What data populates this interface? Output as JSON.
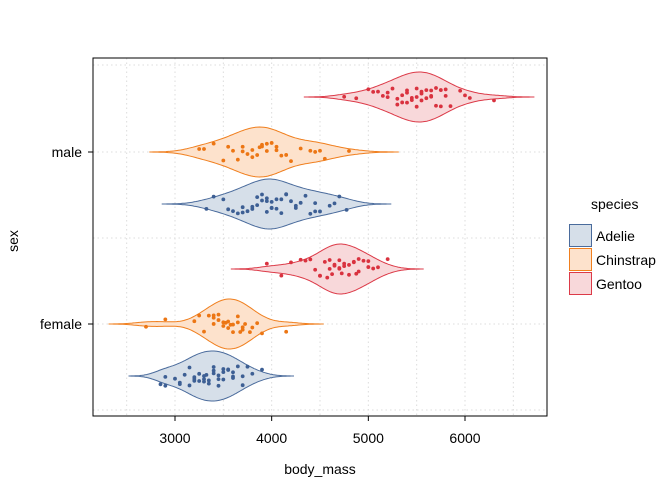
{
  "chart_data": {
    "type": "violin",
    "title": "",
    "xlabel": "body_mass",
    "ylabel": "sex",
    "xlim": [
      2200,
      6850
    ],
    "xticks": [
      3000,
      4000,
      5000,
      6000
    ],
    "xtick_labels": [
      "3000",
      "4000",
      "5000",
      "6000"
    ],
    "categories": [
      "male",
      "female"
    ],
    "grid": true,
    "legend": {
      "title": "species",
      "position": "right",
      "entries": [
        "Adelie",
        "Chinstrap",
        "Gentoo"
      ]
    },
    "colors": {
      "Adelie": {
        "line": "#4a6b9c",
        "fill": "#d6dfe9",
        "point": "#3d5f94"
      },
      "Chinstrap": {
        "line": "#f07f1e",
        "fill": "#fde2cc",
        "point": "#ec7614"
      },
      "Gentoo": {
        "line": "#dc3a48",
        "fill": "#f8d8da",
        "point": "#d9323f"
      }
    },
    "series": [
      {
        "sex": "male",
        "species": "Gentoo",
        "values": [
          4750,
          4875,
          5000,
          5050,
          5150,
          5200,
          5250,
          5300,
          5300,
          5350,
          5400,
          5400,
          5450,
          5500,
          5500,
          5550,
          5550,
          5600,
          5600,
          5650,
          5650,
          5700,
          5700,
          5750,
          5800,
          5800,
          5850,
          5950,
          6000,
          6050,
          6300,
          5200,
          5400,
          5500,
          5650,
          5100,
          5450,
          5550,
          5750,
          5350
        ]
      },
      {
        "sex": "male",
        "species": "Chinstrap",
        "values": [
          3250,
          3300,
          3400,
          3500,
          3550,
          3650,
          3700,
          3700,
          3750,
          3800,
          3800,
          3850,
          3900,
          3900,
          3950,
          3950,
          4000,
          4050,
          4100,
          4150,
          4200,
          4300,
          4400,
          4450,
          4500,
          4550,
          4800,
          3600,
          3875,
          4050
        ]
      },
      {
        "sex": "male",
        "species": "Adelie",
        "values": [
          3325,
          3400,
          3500,
          3550,
          3600,
          3650,
          3700,
          3750,
          3800,
          3800,
          3850,
          3900,
          3900,
          3950,
          3950,
          4000,
          4000,
          4050,
          4100,
          4100,
          4150,
          4200,
          4250,
          4300,
          4350,
          4400,
          4450,
          4500,
          4600,
          4650,
          4700,
          4775,
          3950,
          4050,
          4150,
          3850,
          4000,
          4250,
          3700,
          4450
        ]
      },
      {
        "sex": "female",
        "species": "Gentoo",
        "values": [
          3950,
          4100,
          4200,
          4300,
          4350,
          4400,
          4450,
          4500,
          4500,
          4550,
          4600,
          4600,
          4650,
          4700,
          4700,
          4750,
          4750,
          4800,
          4800,
          4850,
          4850,
          4900,
          4900,
          4950,
          5000,
          5000,
          5050,
          5100,
          5200,
          4625,
          4700,
          4875,
          4650,
          4575,
          4725
        ]
      },
      {
        "sex": "female",
        "species": "Chinstrap",
        "values": [
          2700,
          2900,
          3200,
          3250,
          3300,
          3350,
          3400,
          3400,
          3450,
          3450,
          3500,
          3525,
          3550,
          3575,
          3600,
          3600,
          3650,
          3650,
          3675,
          3700,
          3725,
          3775,
          3800,
          3850,
          3900,
          4150,
          3500,
          3400,
          3550,
          3700
        ]
      },
      {
        "sex": "female",
        "species": "Adelie",
        "values": [
          2850,
          2900,
          2900,
          3000,
          3050,
          3100,
          3150,
          3150,
          3200,
          3200,
          3250,
          3250,
          3300,
          3300,
          3325,
          3350,
          3350,
          3400,
          3400,
          3450,
          3450,
          3450,
          3500,
          3500,
          3550,
          3550,
          3600,
          3600,
          3650,
          3700,
          3700,
          3750,
          3800,
          3900,
          3300,
          3400,
          3200,
          3500,
          3050,
          3600
        ]
      }
    ]
  }
}
